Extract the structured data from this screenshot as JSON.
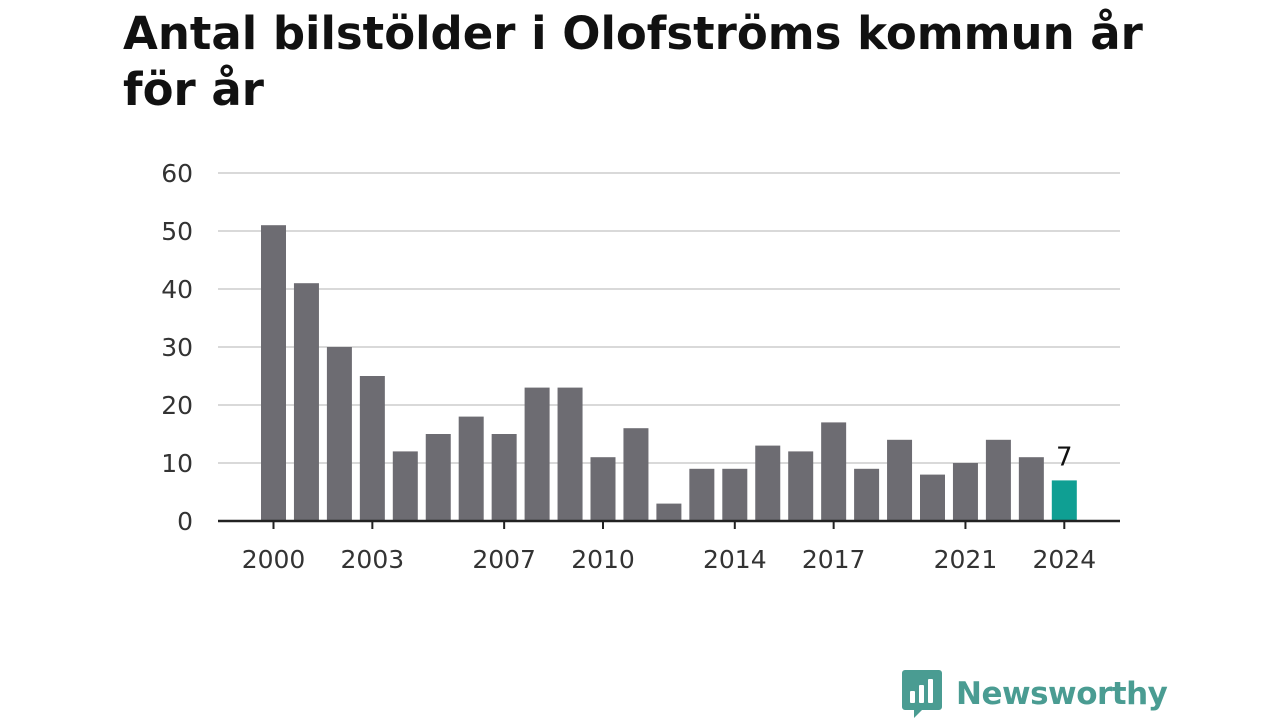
{
  "title": "Antal bilstölder i Olofströms kommun år för år",
  "brand": {
    "name": "Newsworthy",
    "icon": "newsworthy-logo-icon",
    "color": "#4a9c92"
  },
  "colors": {
    "bar": "#6d6c72",
    "highlight": "#0f9f93",
    "grid": "#d9d9d9",
    "axis": "#222222"
  },
  "chart_data": {
    "type": "bar",
    "title": "Antal bilstölder i Olofströms kommun år för år",
    "xlabel": "",
    "ylabel": "",
    "categories": [
      "2000",
      "2001",
      "2002",
      "2003",
      "2004",
      "2005",
      "2006",
      "2007",
      "2008",
      "2009",
      "2010",
      "2011",
      "2012",
      "2013",
      "2014",
      "2015",
      "2016",
      "2017",
      "2018",
      "2019",
      "2020",
      "2021",
      "2022",
      "2023",
      "2024"
    ],
    "values": [
      51,
      41,
      30,
      25,
      12,
      15,
      18,
      15,
      23,
      23,
      11,
      16,
      3,
      9,
      9,
      13,
      12,
      17,
      9,
      14,
      8,
      10,
      14,
      11,
      7
    ],
    "x_tick_labels": [
      "2000",
      "2003",
      "2007",
      "2010",
      "2014",
      "2017",
      "2021",
      "2024"
    ],
    "y_ticks": [
      0,
      10,
      20,
      30,
      40,
      50,
      60
    ],
    "ylim": [
      0,
      60
    ],
    "grid": true,
    "legend": "none",
    "highlight_category": "2024",
    "data_labels": [
      {
        "category": "2024",
        "text": "7"
      }
    ]
  }
}
